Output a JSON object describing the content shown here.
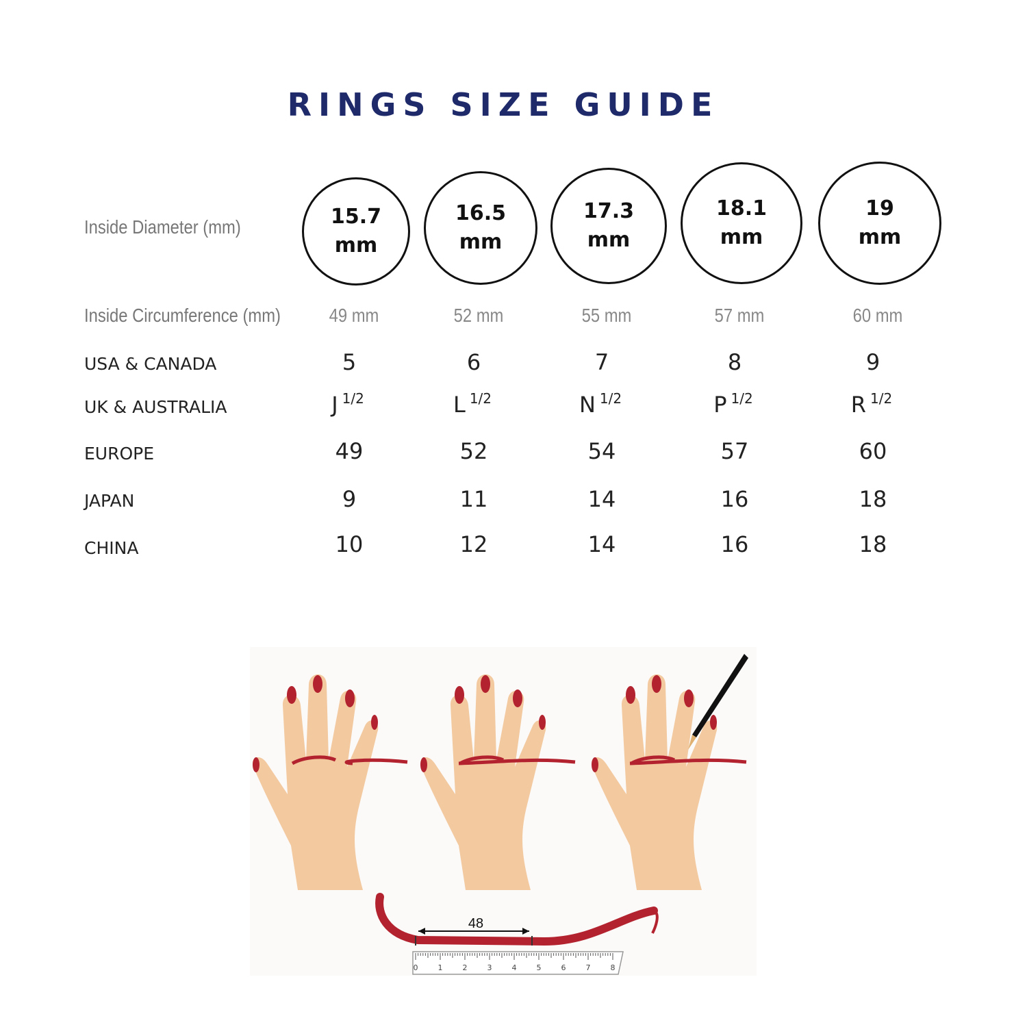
{
  "title": "RINGS SIZE GUIDE",
  "labels": {
    "diameter": "Inside Diameter (mm)",
    "circumference": "Inside Circumference (mm)",
    "usa": "USA & CANADA",
    "uk": "UK & AUSTRALIA",
    "europe": "EUROPE",
    "japan": "JAPAN",
    "china": "CHINA"
  },
  "sizes": [
    {
      "diameter": "15.7",
      "unit": "mm",
      "circumference": "49 mm",
      "usa": "5",
      "uk": "J",
      "uk_frac": "1/2",
      "europe": "49",
      "japan": "9",
      "china": "10"
    },
    {
      "diameter": "16.5",
      "unit": "mm",
      "circumference": "52 mm",
      "usa": "6",
      "uk": "L",
      "uk_frac": "1/2",
      "europe": "52",
      "japan": "11",
      "china": "12"
    },
    {
      "diameter": "17.3",
      "unit": "mm",
      "circumference": "55 mm",
      "usa": "7",
      "uk": "N",
      "uk_frac": "1/2",
      "europe": "54",
      "japan": "14",
      "china": "14"
    },
    {
      "diameter": "18.1",
      "unit": "mm",
      "circumference": "57 mm",
      "usa": "8",
      "uk": "P",
      "uk_frac": "1/2",
      "europe": "57",
      "japan": "16",
      "china": "16"
    },
    {
      "diameter": "19",
      "unit": "mm",
      "circumference": "60 mm",
      "usa": "9",
      "uk": "R",
      "uk_frac": "1/2",
      "europe": "60",
      "japan": "18",
      "china": "18"
    }
  ],
  "illustration": {
    "measure_label": "48",
    "ruler_labels": [
      "0",
      "1",
      "2",
      "3",
      "4",
      "5",
      "6",
      "7",
      "8"
    ]
  },
  "colors": {
    "title": "#1f2a6b",
    "skin": "#f3c9a0",
    "nail": "#b3232f",
    "string": "#b3232f"
  }
}
